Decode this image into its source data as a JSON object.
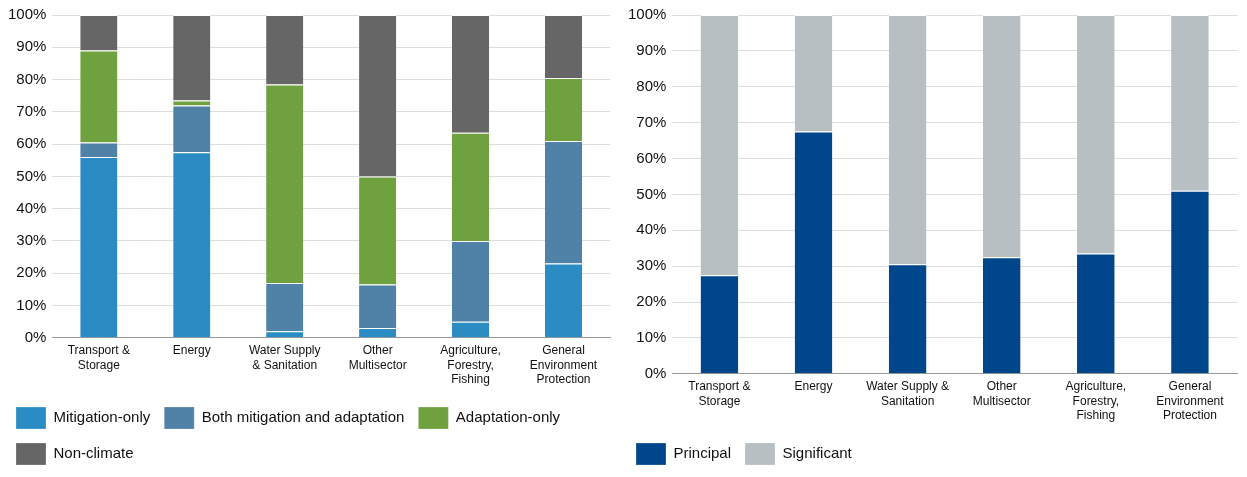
{
  "chart_data": [
    {
      "type": "bar",
      "stacked": true,
      "categories": [
        "Transport & Storage",
        "Energy",
        "Water Supply & Sanitation",
        "Other Multisector",
        "Agriculture, Forestry, Fishing",
        "General Environment Protection"
      ],
      "series": [
        {
          "name": "Mitigation-only",
          "color": "#2b8cc4",
          "values": [
            56,
            57.5,
            2,
            3,
            5,
            23
          ]
        },
        {
          "name": "Both mitigation and adaptation",
          "color": "#4f82a6",
          "values": [
            4.5,
            14.5,
            15,
            13.5,
            25,
            38
          ]
        },
        {
          "name": "Adaptation-only",
          "color": "#6fa23f",
          "values": [
            28.5,
            1.5,
            61.5,
            33.5,
            33.5,
            19.5
          ]
        },
        {
          "name": "Non-climate",
          "color": "#666666",
          "values": [
            11,
            26.5,
            21.5,
            50,
            36.5,
            19.5
          ]
        }
      ],
      "ylim": [
        0,
        100
      ],
      "yticks": [
        {
          "value": 0,
          "label": "0%"
        },
        {
          "value": 10,
          "label": "10%"
        },
        {
          "value": 20,
          "label": "20%"
        },
        {
          "value": 30,
          "label": "30%"
        },
        {
          "value": 40,
          "label": "40%"
        },
        {
          "value": 50,
          "label": "50%"
        },
        {
          "value": 60,
          "label": "60%"
        },
        {
          "value": 70,
          "label": "70%"
        },
        {
          "value": 80,
          "label": "80%"
        },
        {
          "value": 90,
          "label": "90%"
        },
        {
          "value": 100,
          "label": "100%"
        }
      ],
      "grid": "y",
      "legend": "bottom"
    },
    {
      "type": "bar",
      "stacked": true,
      "categories": [
        "Transport & Storage",
        "Energy",
        "Water Supply & Sanitation",
        "Other Multisector",
        "Agriculture, Forestry, Fishing",
        "General Environment Protection"
      ],
      "series": [
        {
          "name": "Principal",
          "color": "#00468b",
          "values": [
            27.5,
            67.5,
            30.5,
            32.5,
            33.5,
            51
          ]
        },
        {
          "name": "Significant",
          "color": "#b8bfc2",
          "values": [
            72.5,
            32.5,
            69.5,
            67.5,
            66.5,
            49
          ]
        }
      ],
      "ylim": [
        0,
        100
      ],
      "yticks": [
        {
          "value": 0,
          "label": "0%"
        },
        {
          "value": 10,
          "label": "10%"
        },
        {
          "value": 20,
          "label": "20%"
        },
        {
          "value": 30,
          "label": "30%"
        },
        {
          "value": 40,
          "label": "40%"
        },
        {
          "value": 50,
          "label": "50%"
        },
        {
          "value": 60,
          "label": "60%"
        },
        {
          "value": 70,
          "label": "70%"
        },
        {
          "value": 80,
          "label": "80%"
        },
        {
          "value": 90,
          "label": "90%"
        },
        {
          "value": 100,
          "label": "100%"
        }
      ],
      "grid": "y",
      "legend": "bottom"
    }
  ]
}
